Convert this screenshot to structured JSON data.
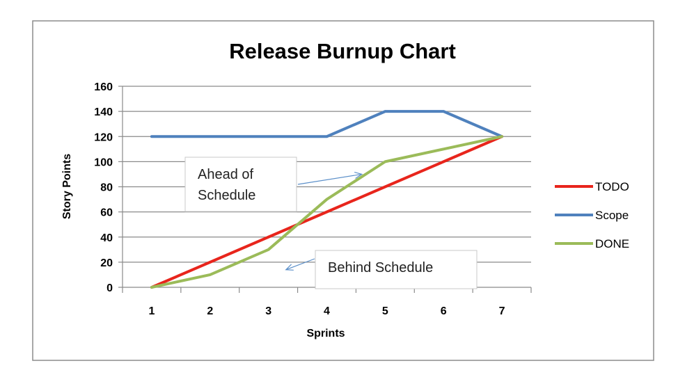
{
  "chart_data": {
    "type": "line",
    "title": "Release Burnup Chart",
    "xlabel": "Sprints",
    "ylabel": "Story Points",
    "x": [
      1,
      2,
      3,
      4,
      5,
      6,
      7
    ],
    "ylim": [
      0,
      160
    ],
    "yticks": [
      0,
      20,
      40,
      60,
      80,
      100,
      120,
      140,
      160
    ],
    "grid": true,
    "legend_position": "right",
    "series": [
      {
        "name": "TODO",
        "color": "#e8251c",
        "values": [
          0,
          20,
          40,
          60,
          80,
          100,
          120
        ]
      },
      {
        "name": "Scope",
        "color": "#4f81bd",
        "values": [
          120,
          120,
          120,
          120,
          140,
          140,
          120
        ]
      },
      {
        "name": "DONE",
        "color": "#9bbb59",
        "values": [
          0,
          10,
          30,
          70,
          100,
          110,
          120
        ]
      }
    ],
    "annotations": [
      {
        "lines": [
          "Ahead of",
          "Schedule"
        ],
        "points_to": {
          "x": 4.6,
          "y": 90
        }
      },
      {
        "lines": [
          "Behind Schedule"
        ],
        "points_to": {
          "x": 3.3,
          "y": 14
        }
      }
    ]
  }
}
